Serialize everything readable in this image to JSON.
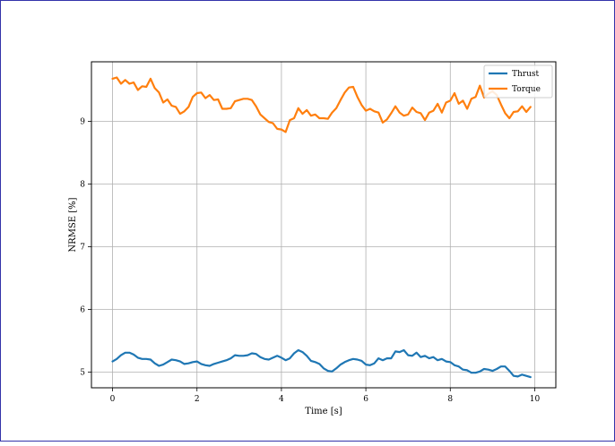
{
  "chart_data": {
    "type": "line",
    "title": "",
    "xlabel": "Time [s]",
    "ylabel": "NRMSE [%]",
    "xlim": [
      -0.5,
      10.5
    ],
    "ylim": [
      4.75,
      9.95
    ],
    "xticks": [
      0,
      2,
      4,
      6,
      8,
      10
    ],
    "yticks": [
      5,
      6,
      7,
      8,
      9
    ],
    "xtick_labels": [
      "0",
      "2",
      "4",
      "6",
      "8",
      "10"
    ],
    "ytick_labels": [
      "5",
      "6",
      "7",
      "8",
      "9"
    ],
    "grid": true,
    "legend_position": "top-right",
    "series": [
      {
        "name": "Thrust",
        "color": "#1f77b4",
        "x": [
          0.0,
          0.1,
          0.2,
          0.3,
          0.4,
          0.5,
          0.6,
          0.7,
          0.8,
          0.9,
          1.0,
          1.1,
          1.2,
          1.3,
          1.4,
          1.5,
          1.6,
          1.7,
          1.8,
          1.9,
          2.0,
          2.1,
          2.2,
          2.3,
          2.4,
          2.5,
          2.6,
          2.7,
          2.8,
          2.9,
          3.0,
          3.1,
          3.2,
          3.3,
          3.4,
          3.5,
          3.6,
          3.7,
          3.8,
          3.9,
          4.0,
          4.1,
          4.2,
          4.3,
          4.4,
          4.5,
          4.6,
          4.7,
          4.8,
          4.9,
          5.0,
          5.1,
          5.2,
          5.3,
          5.4,
          5.5,
          5.6,
          5.7,
          5.8,
          5.9,
          6.0,
          6.1,
          6.2,
          6.3,
          6.4,
          6.5,
          6.6,
          6.7,
          6.8,
          6.9,
          7.0,
          7.1,
          7.2,
          7.3,
          7.4,
          7.5,
          7.6,
          7.7,
          7.8,
          7.9,
          8.0,
          8.1,
          8.2,
          8.3,
          8.4,
          8.5,
          8.6,
          8.7,
          8.8,
          8.9,
          9.0,
          9.1,
          9.2,
          9.3,
          9.4,
          9.5,
          9.6,
          9.7,
          9.8,
          9.9
        ],
        "values": [
          5.17,
          5.21,
          5.27,
          5.31,
          5.31,
          5.28,
          5.23,
          5.21,
          5.21,
          5.2,
          5.14,
          5.1,
          5.12,
          5.16,
          5.2,
          5.19,
          5.17,
          5.13,
          5.14,
          5.16,
          5.17,
          5.13,
          5.11,
          5.1,
          5.13,
          5.15,
          5.17,
          5.19,
          5.22,
          5.27,
          5.26,
          5.26,
          5.27,
          5.3,
          5.29,
          5.24,
          5.21,
          5.2,
          5.23,
          5.26,
          5.23,
          5.19,
          5.22,
          5.3,
          5.35,
          5.32,
          5.26,
          5.18,
          5.16,
          5.13,
          5.06,
          5.02,
          5.01,
          5.06,
          5.12,
          5.16,
          5.19,
          5.21,
          5.2,
          5.18,
          5.12,
          5.11,
          5.14,
          5.22,
          5.19,
          5.22,
          5.22,
          5.33,
          5.32,
          5.35,
          5.27,
          5.26,
          5.31,
          5.24,
          5.26,
          5.22,
          5.24,
          5.19,
          5.21,
          5.17,
          5.16,
          5.11,
          5.09,
          5.04,
          5.03,
          4.99,
          4.99,
          5.01,
          5.05,
          5.04,
          5.02,
          5.05,
          5.09,
          5.09,
          5.02,
          4.94,
          4.93,
          4.96,
          4.94,
          4.92
        ]
      },
      {
        "name": "Torque",
        "color": "#ff7f0e",
        "x": [
          0.0,
          0.1,
          0.2,
          0.3,
          0.4,
          0.5,
          0.6,
          0.7,
          0.8,
          0.9,
          1.0,
          1.1,
          1.2,
          1.3,
          1.4,
          1.5,
          1.6,
          1.7,
          1.8,
          1.9,
          2.0,
          2.1,
          2.2,
          2.3,
          2.4,
          2.5,
          2.6,
          2.7,
          2.8,
          2.9,
          3.0,
          3.1,
          3.2,
          3.3,
          3.4,
          3.5,
          3.6,
          3.7,
          3.8,
          3.9,
          4.0,
          4.1,
          4.2,
          4.3,
          4.4,
          4.5,
          4.6,
          4.7,
          4.8,
          4.9,
          5.0,
          5.1,
          5.2,
          5.3,
          5.4,
          5.5,
          5.6,
          5.7,
          5.8,
          5.9,
          6.0,
          6.1,
          6.2,
          6.3,
          6.4,
          6.5,
          6.6,
          6.7,
          6.8,
          6.9,
          7.0,
          7.1,
          7.2,
          7.3,
          7.4,
          7.5,
          7.6,
          7.7,
          7.8,
          7.9,
          8.0,
          8.1,
          8.2,
          8.3,
          8.4,
          8.5,
          8.6,
          8.7,
          8.8,
          8.9,
          9.0,
          9.1,
          9.2,
          9.3,
          9.4,
          9.5,
          9.6,
          9.7,
          9.8,
          9.9
        ],
        "values": [
          9.68,
          9.7,
          9.6,
          9.66,
          9.6,
          9.62,
          9.5,
          9.56,
          9.55,
          9.68,
          9.53,
          9.46,
          9.3,
          9.35,
          9.25,
          9.23,
          9.12,
          9.16,
          9.23,
          9.39,
          9.45,
          9.46,
          9.37,
          9.42,
          9.34,
          9.35,
          9.2,
          9.2,
          9.21,
          9.32,
          9.34,
          9.36,
          9.36,
          9.34,
          9.24,
          9.11,
          9.05,
          8.99,
          8.97,
          8.88,
          8.87,
          8.83,
          9.02,
          9.05,
          9.21,
          9.12,
          9.18,
          9.09,
          9.11,
          9.05,
          9.05,
          9.04,
          9.14,
          9.21,
          9.34,
          9.46,
          9.54,
          9.55,
          9.39,
          9.26,
          9.17,
          9.2,
          9.16,
          9.14,
          8.98,
          9.03,
          9.13,
          9.24,
          9.14,
          9.09,
          9.11,
          9.22,
          9.15,
          9.13,
          9.02,
          9.14,
          9.17,
          9.28,
          9.14,
          9.3,
          9.33,
          9.45,
          9.28,
          9.33,
          9.2,
          9.36,
          9.39,
          9.57,
          9.38,
          9.44,
          9.48,
          9.42,
          9.27,
          9.13,
          9.05,
          9.15,
          9.16,
          9.24,
          9.15,
          9.23
        ]
      }
    ]
  }
}
